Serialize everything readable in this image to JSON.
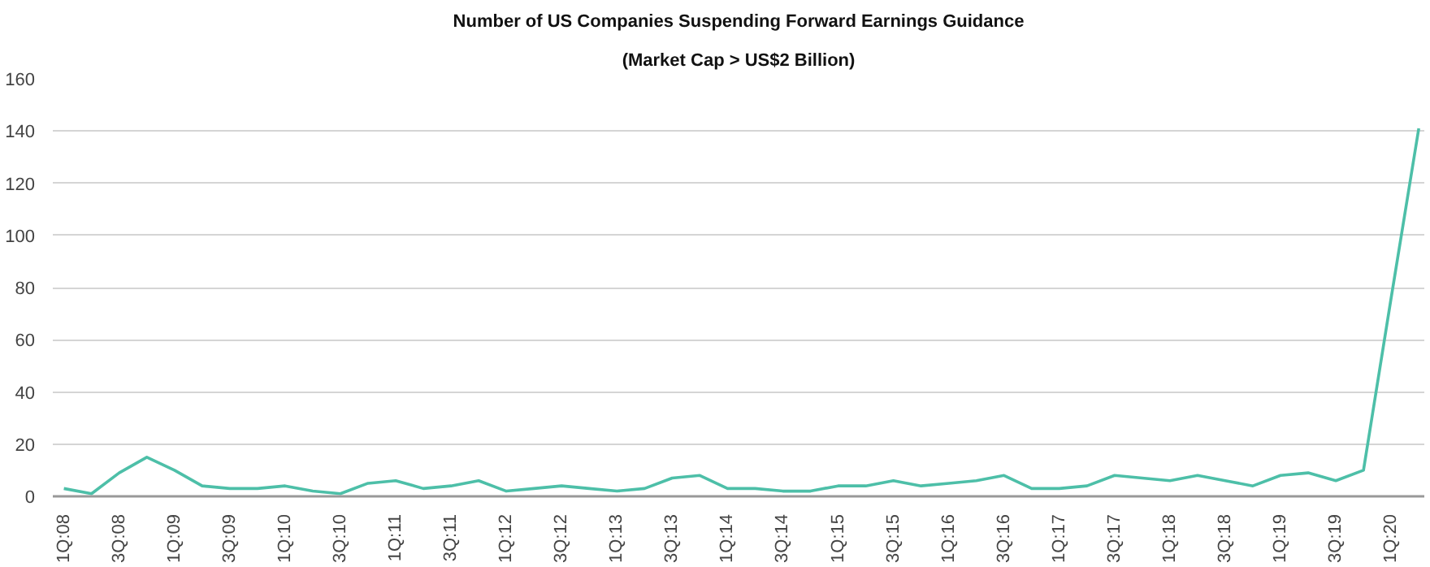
{
  "chart_data": {
    "type": "line",
    "title": "Number of US Companies Suspending Forward Earnings Guidance",
    "subtitle": "(Market Cap > US$2 Billion)",
    "categories": [
      "1Q:08",
      null,
      "3Q:08",
      null,
      "1Q:09",
      null,
      "3Q:09",
      null,
      "1Q:10",
      null,
      "3Q:10",
      null,
      "1Q:11",
      null,
      "3Q:11",
      null,
      "1Q:12",
      null,
      "3Q:12",
      null,
      "1Q:13",
      null,
      "3Q:13",
      null,
      "1Q:14",
      null,
      "3Q:14",
      null,
      "1Q:15",
      null,
      "3Q:15",
      null,
      "1Q:16",
      null,
      "3Q:16",
      null,
      "1Q:17",
      null,
      "3Q:17",
      null,
      "1Q:18",
      null,
      "3Q:18",
      null,
      "1Q:19",
      null,
      "3Q:19",
      null,
      "1Q:20",
      null
    ],
    "series": [
      {
        "color": "#4dbfa8",
        "values": [
          3,
          1,
          9,
          15,
          10,
          4,
          3,
          3,
          4,
          2,
          1,
          5,
          6,
          3,
          4,
          6,
          2,
          3,
          4,
          3,
          2,
          3,
          7,
          8,
          3,
          3,
          2,
          2,
          4,
          4,
          6,
          4,
          5,
          6,
          8,
          3,
          3,
          4,
          8,
          7,
          6,
          8,
          6,
          4,
          8,
          9,
          6,
          10,
          76,
          141
        ]
      }
    ],
    "ylim": [
      0,
      160
    ],
    "yticks": [
      0,
      20,
      40,
      60,
      80,
      100,
      120,
      140,
      160
    ],
    "grid": "y",
    "marker": "none",
    "line_style": "solid"
  }
}
